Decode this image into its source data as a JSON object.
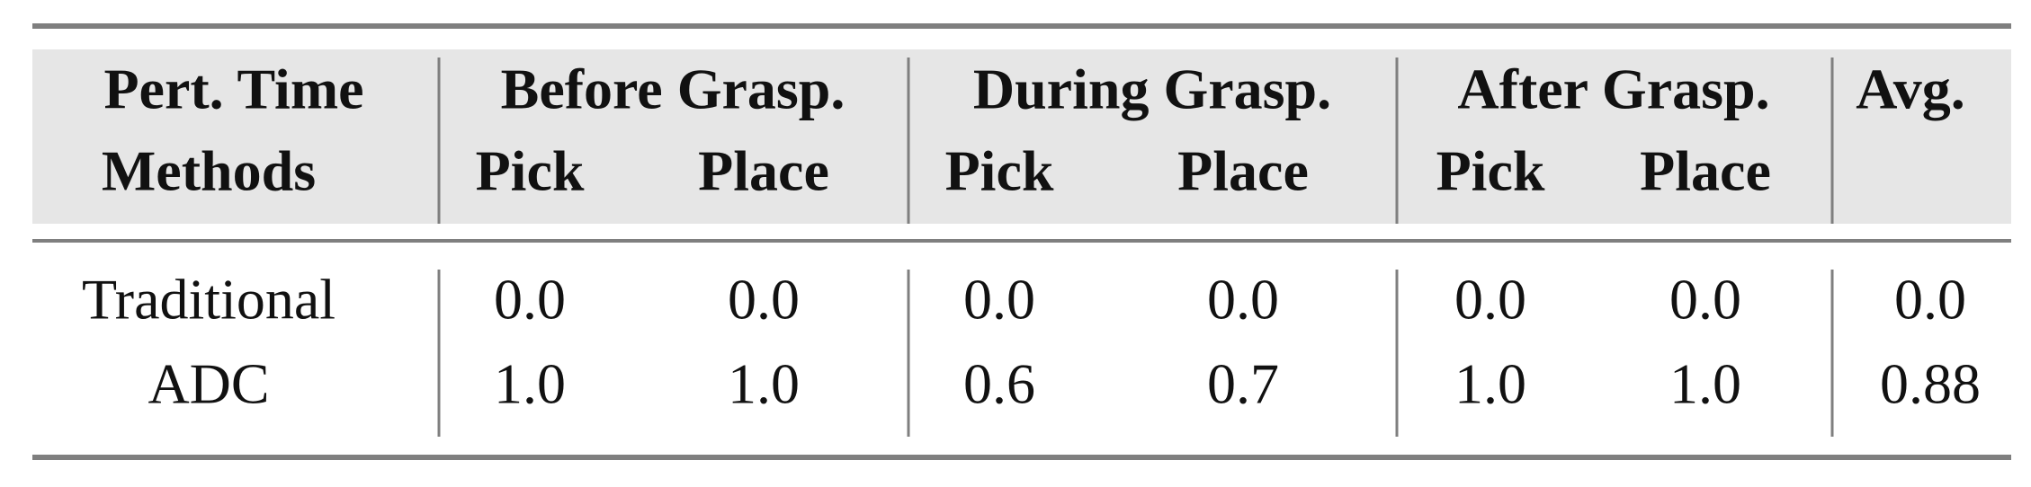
{
  "table": {
    "header": [
      [
        "Pert. Time",
        "Before Grasp.",
        "During Grasp.",
        "After Grasp.",
        "Avg."
      ],
      [
        "Methods",
        "Pick",
        "Place",
        "Pick",
        "Place",
        "Pick",
        "Place"
      ]
    ],
    "rows": [
      [
        "Traditional",
        "0.0",
        "0.0",
        "0.0",
        "0.0",
        "0.0",
        "0.0",
        "0.0"
      ],
      [
        "ADC",
        "1.0",
        "1.0",
        "0.6",
        "0.7",
        "1.0",
        "1.0",
        "0.88"
      ]
    ]
  }
}
